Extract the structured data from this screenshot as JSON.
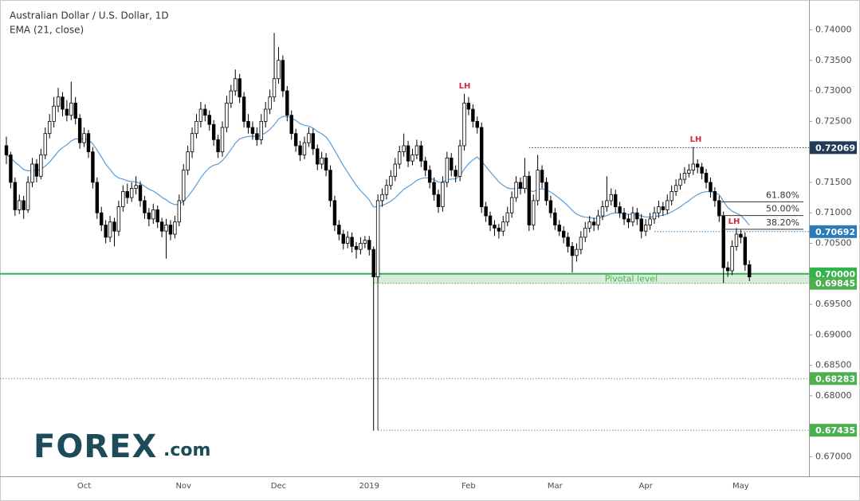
{
  "chart_data": {
    "type": "candlestick",
    "title": "Australian Dollar / U.S. Dollar, 1D",
    "ema": {
      "label": "EMA (21, close)",
      "period": 21,
      "color": "#5b9bd5"
    },
    "categories": [
      null,
      null,
      null,
      null,
      null,
      null,
      null,
      null,
      null,
      null,
      null,
      null,
      null,
      null,
      null,
      null,
      null,
      null,
      "Oct",
      null,
      null,
      null,
      null,
      null,
      null,
      null,
      null,
      null,
      null,
      null,
      null,
      null,
      null,
      null,
      null,
      null,
      null,
      null,
      null,
      null,
      null,
      "Nov",
      null,
      null,
      null,
      null,
      null,
      null,
      null,
      null,
      null,
      null,
      null,
      null,
      null,
      null,
      null,
      null,
      null,
      null,
      null,
      null,
      null,
      "Dec",
      null,
      null,
      null,
      null,
      null,
      null,
      null,
      null,
      null,
      null,
      null,
      null,
      null,
      null,
      null,
      null,
      null,
      null,
      null,
      null,
      "2019",
      null,
      null,
      null,
      null,
      null,
      null,
      null,
      null,
      null,
      null,
      null,
      null,
      null,
      null,
      null,
      null,
      null,
      null,
      null,
      null,
      null,
      null,
      "Feb",
      null,
      null,
      null,
      null,
      null,
      null,
      null,
      null,
      null,
      null,
      null,
      null,
      null,
      null,
      null,
      null,
      null,
      null,
      null,
      "Mar",
      null,
      null,
      null,
      null,
      null,
      null,
      null,
      null,
      null,
      null,
      null,
      null,
      null,
      null,
      null,
      null,
      null,
      null,
      null,
      null,
      "Apr",
      null,
      null,
      null,
      null,
      null,
      null,
      null,
      null,
      null,
      null,
      null,
      null,
      null,
      null,
      null,
      null,
      null,
      null,
      null,
      null,
      null,
      "May",
      null,
      null
    ],
    "candles": [
      [
        0.721,
        0.7225,
        0.718,
        0.7195
      ],
      [
        0.7195,
        0.72,
        0.714,
        0.715
      ],
      [
        0.715,
        0.7158,
        0.7095,
        0.7105
      ],
      [
        0.7105,
        0.713,
        0.7098,
        0.712
      ],
      [
        0.712,
        0.7128,
        0.709,
        0.7105
      ],
      [
        0.7105,
        0.716,
        0.71,
        0.715
      ],
      [
        0.715,
        0.719,
        0.7142,
        0.718
      ],
      [
        0.718,
        0.7188,
        0.715,
        0.716
      ],
      [
        0.716,
        0.7205,
        0.7155,
        0.7195
      ],
      [
        0.7195,
        0.724,
        0.7188,
        0.723
      ],
      [
        0.723,
        0.7262,
        0.7222,
        0.725
      ],
      [
        0.725,
        0.729,
        0.724,
        0.7275
      ],
      [
        0.7275,
        0.7305,
        0.7265,
        0.729
      ],
      [
        0.729,
        0.7298,
        0.7258,
        0.727
      ],
      [
        0.727,
        0.7285,
        0.725,
        0.726
      ],
      [
        0.726,
        0.7315,
        0.7252,
        0.728
      ],
      [
        0.728,
        0.729,
        0.7245,
        0.7255
      ],
      [
        0.7255,
        0.7262,
        0.7205,
        0.7215
      ],
      [
        0.7215,
        0.724,
        0.7208,
        0.723
      ],
      [
        0.723,
        0.7236,
        0.719,
        0.72
      ],
      [
        0.72,
        0.7208,
        0.714,
        0.715
      ],
      [
        0.715,
        0.7158,
        0.709,
        0.71
      ],
      [
        0.71,
        0.711,
        0.707,
        0.708
      ],
      [
        0.708,
        0.7088,
        0.705,
        0.706
      ],
      [
        0.706,
        0.7095,
        0.7052,
        0.7085
      ],
      [
        0.7085,
        0.7092,
        0.7045,
        0.707
      ],
      [
        0.707,
        0.712,
        0.7062,
        0.711
      ],
      [
        0.711,
        0.7145,
        0.7102,
        0.7135
      ],
      [
        0.7135,
        0.7148,
        0.7115,
        0.7125
      ],
      [
        0.7125,
        0.715,
        0.7118,
        0.714
      ],
      [
        0.714,
        0.716,
        0.713,
        0.7145
      ],
      [
        0.7145,
        0.7152,
        0.711,
        0.712
      ],
      [
        0.712,
        0.7128,
        0.709,
        0.71
      ],
      [
        0.71,
        0.7108,
        0.7078,
        0.709
      ],
      [
        0.709,
        0.7115,
        0.7082,
        0.7105
      ],
      [
        0.7105,
        0.7112,
        0.7075,
        0.7085
      ],
      [
        0.7085,
        0.7092,
        0.706,
        0.707
      ],
      [
        0.707,
        0.709,
        0.7025,
        0.708
      ],
      [
        0.708,
        0.7088,
        0.7055,
        0.7065
      ],
      [
        0.7065,
        0.7095,
        0.7058,
        0.7085
      ],
      [
        0.7085,
        0.713,
        0.7078,
        0.712
      ],
      [
        0.712,
        0.718,
        0.7112,
        0.717
      ],
      [
        0.717,
        0.721,
        0.7162,
        0.72
      ],
      [
        0.72,
        0.724,
        0.719,
        0.723
      ],
      [
        0.723,
        0.7262,
        0.7222,
        0.725
      ],
      [
        0.725,
        0.7282,
        0.724,
        0.727
      ],
      [
        0.727,
        0.7278,
        0.725,
        0.726
      ],
      [
        0.726,
        0.7268,
        0.7235,
        0.7245
      ],
      [
        0.7245,
        0.7252,
        0.721,
        0.722
      ],
      [
        0.722,
        0.7228,
        0.719,
        0.72
      ],
      [
        0.72,
        0.725,
        0.7192,
        0.724
      ],
      [
        0.724,
        0.7292,
        0.7232,
        0.728
      ],
      [
        0.728,
        0.731,
        0.7272,
        0.73
      ],
      [
        0.73,
        0.7335,
        0.7292,
        0.732
      ],
      [
        0.732,
        0.7328,
        0.728,
        0.729
      ],
      [
        0.729,
        0.7298,
        0.724,
        0.725
      ],
      [
        0.725,
        0.7262,
        0.723,
        0.724
      ],
      [
        0.724,
        0.725,
        0.722,
        0.723
      ],
      [
        0.723,
        0.724,
        0.721,
        0.722
      ],
      [
        0.722,
        0.7262,
        0.7212,
        0.725
      ],
      [
        0.725,
        0.7282,
        0.724,
        0.727
      ],
      [
        0.727,
        0.7302,
        0.7262,
        0.729
      ],
      [
        0.729,
        0.7395,
        0.7282,
        0.732
      ],
      [
        0.732,
        0.7372,
        0.7312,
        0.735
      ],
      [
        0.735,
        0.7358,
        0.729,
        0.73
      ],
      [
        0.73,
        0.7308,
        0.725,
        0.726
      ],
      [
        0.726,
        0.7268,
        0.722,
        0.723
      ],
      [
        0.723,
        0.7238,
        0.72,
        0.721
      ],
      [
        0.721,
        0.7218,
        0.7185,
        0.7195
      ],
      [
        0.7195,
        0.7225,
        0.7188,
        0.7215
      ],
      [
        0.7215,
        0.724,
        0.7208,
        0.723
      ],
      [
        0.723,
        0.7238,
        0.7195,
        0.7205
      ],
      [
        0.7205,
        0.7212,
        0.717,
        0.718
      ],
      [
        0.718,
        0.72,
        0.7172,
        0.719
      ],
      [
        0.719,
        0.7198,
        0.716,
        0.717
      ],
      [
        0.717,
        0.7178,
        0.711,
        0.712
      ],
      [
        0.712,
        0.7128,
        0.707,
        0.708
      ],
      [
        0.708,
        0.7088,
        0.7055,
        0.7065
      ],
      [
        0.7065,
        0.7072,
        0.704,
        0.705
      ],
      [
        0.705,
        0.707,
        0.7042,
        0.706
      ],
      [
        0.706,
        0.7068,
        0.7035,
        0.7045
      ],
      [
        0.7045,
        0.7052,
        0.7025,
        0.704
      ],
      [
        0.704,
        0.706,
        0.7032,
        0.705
      ],
      [
        0.705,
        0.7062,
        0.7042,
        0.7055
      ],
      [
        0.7055,
        0.7062,
        0.703,
        0.704
      ],
      [
        0.704,
        0.7045,
        0.6743,
        0.6995
      ],
      [
        0.6995,
        0.713,
        0.6985,
        0.712
      ],
      [
        0.712,
        0.714,
        0.711,
        0.713
      ],
      [
        0.713,
        0.7155,
        0.7122,
        0.7145
      ],
      [
        0.7145,
        0.717,
        0.7138,
        0.716
      ],
      [
        0.716,
        0.719,
        0.7152,
        0.718
      ],
      [
        0.718,
        0.721,
        0.7172,
        0.72
      ],
      [
        0.72,
        0.723,
        0.7192,
        0.721
      ],
      [
        0.721,
        0.7218,
        0.7175,
        0.7185
      ],
      [
        0.7185,
        0.7205,
        0.7178,
        0.7195
      ],
      [
        0.7195,
        0.722,
        0.7188,
        0.721
      ],
      [
        0.721,
        0.7218,
        0.7175,
        0.7185
      ],
      [
        0.7185,
        0.7192,
        0.716,
        0.717
      ],
      [
        0.717,
        0.7178,
        0.714,
        0.715
      ],
      [
        0.715,
        0.7158,
        0.712,
        0.713
      ],
      [
        0.713,
        0.7138,
        0.71,
        0.711
      ],
      [
        0.711,
        0.716,
        0.7102,
        0.715
      ],
      [
        0.715,
        0.72,
        0.7142,
        0.719
      ],
      [
        0.719,
        0.7198,
        0.716,
        0.717
      ],
      [
        0.717,
        0.7178,
        0.715,
        0.716
      ],
      [
        0.716,
        0.722,
        0.7152,
        0.721
      ],
      [
        0.721,
        0.7295,
        0.7202,
        0.728
      ],
      [
        0.728,
        0.729,
        0.726,
        0.727
      ],
      [
        0.727,
        0.7278,
        0.724,
        0.725
      ],
      [
        0.725,
        0.7258,
        0.723,
        0.724
      ],
      [
        0.724,
        0.7248,
        0.71,
        0.711
      ],
      [
        0.711,
        0.7118,
        0.7085,
        0.7095
      ],
      [
        0.7095,
        0.7102,
        0.707,
        0.708
      ],
      [
        0.708,
        0.7088,
        0.7062,
        0.7075
      ],
      [
        0.7075,
        0.7082,
        0.7058,
        0.707
      ],
      [
        0.707,
        0.7095,
        0.7062,
        0.7085
      ],
      [
        0.7085,
        0.711,
        0.7078,
        0.71
      ],
      [
        0.71,
        0.7135,
        0.7092,
        0.7125
      ],
      [
        0.7125,
        0.716,
        0.7118,
        0.715
      ],
      [
        0.715,
        0.7158,
        0.713,
        0.714
      ],
      [
        0.714,
        0.719,
        0.7132,
        0.716
      ],
      [
        0.716,
        0.7168,
        0.707,
        0.708
      ],
      [
        0.708,
        0.713,
        0.7072,
        0.712
      ],
      [
        0.712,
        0.7195,
        0.7112,
        0.717
      ],
      [
        0.717,
        0.7178,
        0.714,
        0.715
      ],
      [
        0.715,
        0.7158,
        0.7112,
        0.712
      ],
      [
        0.712,
        0.7128,
        0.7092,
        0.71
      ],
      [
        0.71,
        0.7108,
        0.7072,
        0.708
      ],
      [
        0.708,
        0.7088,
        0.7062,
        0.707
      ],
      [
        0.707,
        0.7078,
        0.705,
        0.706
      ],
      [
        0.706,
        0.7068,
        0.7035,
        0.7045
      ],
      [
        0.7045,
        0.7052,
        0.7002,
        0.703
      ],
      [
        0.703,
        0.705,
        0.702,
        0.704
      ],
      [
        0.704,
        0.707,
        0.7032,
        0.706
      ],
      [
        0.706,
        0.7085,
        0.7052,
        0.7075
      ],
      [
        0.7075,
        0.7095,
        0.7068,
        0.7085
      ],
      [
        0.7085,
        0.7092,
        0.707,
        0.708
      ],
      [
        0.708,
        0.7105,
        0.7072,
        0.7095
      ],
      [
        0.7095,
        0.712,
        0.7088,
        0.711
      ],
      [
        0.711,
        0.716,
        0.7102,
        0.712
      ],
      [
        0.712,
        0.714,
        0.7112,
        0.713
      ],
      [
        0.713,
        0.7138,
        0.71,
        0.711
      ],
      [
        0.711,
        0.7118,
        0.7092,
        0.71
      ],
      [
        0.71,
        0.7108,
        0.708,
        0.709
      ],
      [
        0.709,
        0.7098,
        0.7075,
        0.7085
      ],
      [
        0.7085,
        0.711,
        0.7078,
        0.71
      ],
      [
        0.71,
        0.7108,
        0.708,
        0.709
      ],
      [
        0.709,
        0.7098,
        0.7058,
        0.707
      ],
      [
        0.707,
        0.709,
        0.7062,
        0.708
      ],
      [
        0.708,
        0.71,
        0.7072,
        0.709
      ],
      [
        0.709,
        0.711,
        0.7082,
        0.71
      ],
      [
        0.71,
        0.712,
        0.7092,
        0.711
      ],
      [
        0.711,
        0.7118,
        0.7095,
        0.7105
      ],
      [
        0.7105,
        0.713,
        0.7098,
        0.712
      ],
      [
        0.712,
        0.7145,
        0.7112,
        0.7135
      ],
      [
        0.7135,
        0.7155,
        0.7128,
        0.7145
      ],
      [
        0.7145,
        0.7165,
        0.7138,
        0.7155
      ],
      [
        0.7155,
        0.7175,
        0.7148,
        0.7165
      ],
      [
        0.7165,
        0.718,
        0.7158,
        0.717
      ],
      [
        0.717,
        0.7208,
        0.7162,
        0.718
      ],
      [
        0.718,
        0.7188,
        0.7165,
        0.7175
      ],
      [
        0.7175,
        0.7182,
        0.7155,
        0.7165
      ],
      [
        0.7165,
        0.7172,
        0.714,
        0.715
      ],
      [
        0.715,
        0.7158,
        0.7125,
        0.7135
      ],
      [
        0.7135,
        0.7142,
        0.711,
        0.712
      ],
      [
        0.712,
        0.7128,
        0.7085,
        0.7095
      ],
      [
        0.7095,
        0.7102,
        0.6985,
        0.701
      ],
      [
        0.701,
        0.702,
        0.6995,
        0.7005
      ],
      [
        0.7005,
        0.7055,
        0.6998,
        0.7045
      ],
      [
        0.7045,
        0.7075,
        0.7038,
        0.7065
      ],
      [
        0.7065,
        0.7072,
        0.705,
        0.706
      ],
      [
        0.706,
        0.7068,
        0.7005,
        0.7015
      ],
      [
        0.7015,
        0.7022,
        0.6988,
        0.6995
      ]
    ],
    "ylim": [
      0.6668,
      0.7449
    ],
    "yticks": [
      {
        "value": 0.74,
        "label": "0.74000"
      },
      {
        "value": 0.735,
        "label": "0.73500"
      },
      {
        "value": 0.73,
        "label": "0.73000"
      },
      {
        "value": 0.725,
        "label": "0.72500"
      },
      {
        "value": 0.715,
        "label": "0.71500"
      },
      {
        "value": 0.71,
        "label": "0.71000"
      },
      {
        "value": 0.705,
        "label": "0.70500"
      },
      {
        "value": 0.695,
        "label": "0.69500"
      },
      {
        "value": 0.69,
        "label": "0.69000"
      },
      {
        "value": 0.685,
        "label": "0.68500"
      },
      {
        "value": 0.68,
        "label": "0.68000"
      },
      {
        "value": 0.67,
        "label": "0.67000"
      }
    ],
    "levels": [
      0.72069,
      0.70692,
      {
        "value": 0.7,
        "label": "0.70000"
      },
      0.69845,
      0.68283,
      0.67435
    ],
    "level_colors": [
      "#1f3b57",
      "#2b7bb9",
      "#2fb34a",
      "#4caf50",
      "#4caf50",
      "#4caf50"
    ],
    "zone_label": "Pivotal level",
    "fib": {
      "from": 0.7,
      "to": 0.7191,
      "levels": [
        {
          "value": 61.8,
          "label": "61.80%"
        },
        {
          "value": 50,
          "label": "50.00%"
        },
        {
          "value": 38.2,
          "label": "38.20%"
        }
      ]
    },
    "annotations": [
      "LH",
      "LH",
      "LH"
    ]
  },
  "logo": {
    "brand": "FOREX",
    "suffix": ".com"
  }
}
